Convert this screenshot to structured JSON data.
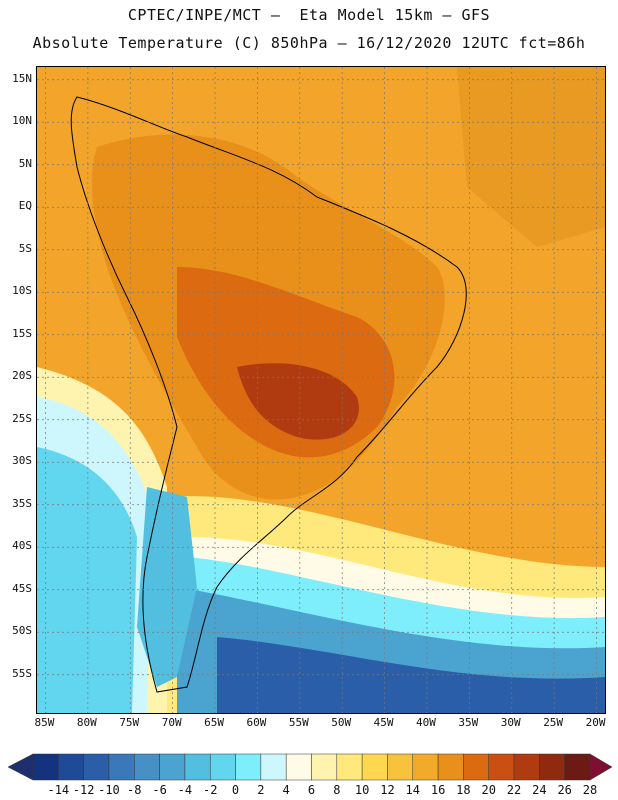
{
  "header": {
    "title_line1": "CPTEC/INPE/MCT –  Eta Model 15km – GFS",
    "title_line2": "Absolute Temperature (C) 850hPa – 16/12/2020 12UTC fct=86h"
  },
  "map": {
    "lat_labels": [
      "15N",
      "10N",
      "5N",
      "EQ",
      "5S",
      "10S",
      "15S",
      "20S",
      "25S",
      "30S",
      "35S",
      "40S",
      "45S",
      "50S",
      "55S"
    ],
    "lat_values": [
      15,
      10,
      5,
      0,
      -5,
      -10,
      -15,
      -20,
      -25,
      -30,
      -35,
      -40,
      -45,
      -50,
      -55
    ],
    "lon_labels": [
      "85W",
      "80W",
      "75W",
      "70W",
      "65W",
      "60W",
      "55W",
      "50W",
      "45W",
      "40W",
      "35W",
      "30W",
      "25W",
      "20W"
    ],
    "lon_values": [
      -85,
      -80,
      -75,
      -70,
      -65,
      -60,
      -55,
      -50,
      -45,
      -40,
      -35,
      -30,
      -25,
      -20
    ],
    "background_color": "#f2a52a"
  },
  "colorbar": {
    "labels": [
      "-14",
      "-12",
      "-10",
      "-8",
      "-6",
      "-4",
      "-2",
      "0",
      "2",
      "4",
      "6",
      "8",
      "10",
      "12",
      "14",
      "16",
      "18",
      "20",
      "22",
      "24",
      "26",
      "28"
    ],
    "colors": [
      "#13337e",
      "#1e4a98",
      "#2a5ea8",
      "#3a78ba",
      "#4690c6",
      "#4aa4cf",
      "#52bfe0",
      "#62d6ef",
      "#7eeefc",
      "#cdf7fc",
      "#fffbe6",
      "#fff3b0",
      "#ffe87c",
      "#ffd84f",
      "#f8c33c",
      "#f2ab28",
      "#e9901a",
      "#dc6a10",
      "#c95012",
      "#b13b10",
      "#8f2a10",
      "#6b1a14"
    ],
    "low_color": "#1e2f6e",
    "high_color": "#7e0f32"
  }
}
